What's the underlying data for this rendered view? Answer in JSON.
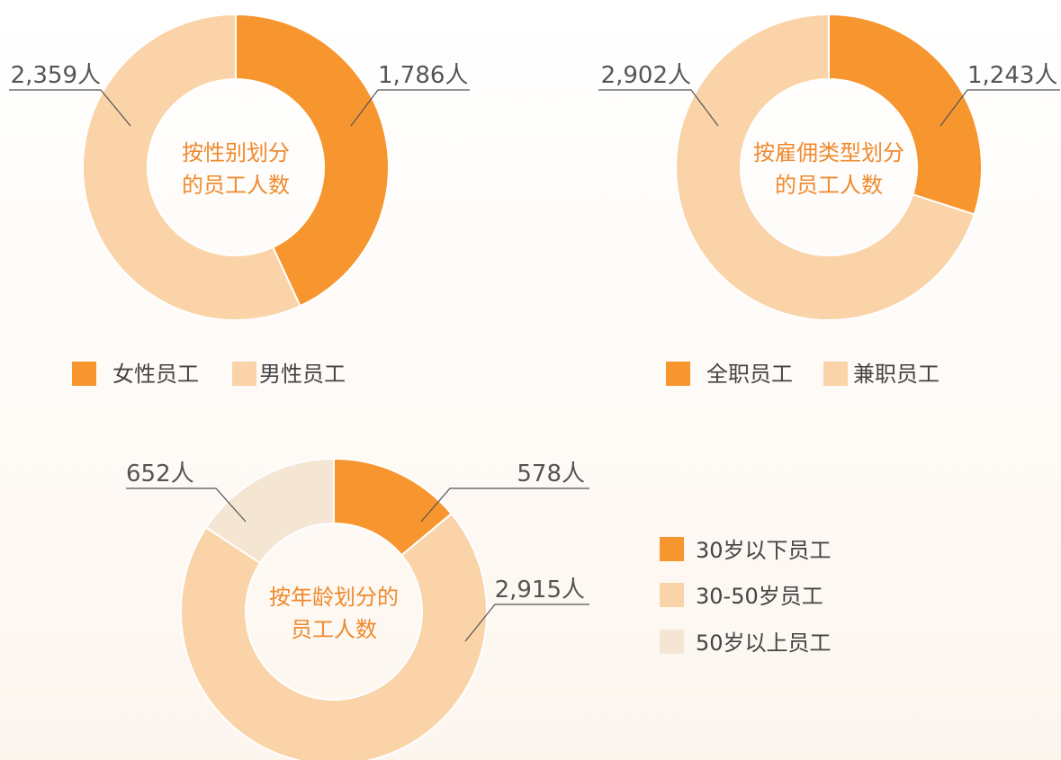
{
  "chart_data": [
    {
      "type": "pie",
      "title": [
        "按性别划分",
        "的员工人数"
      ],
      "categories": [
        "女性员工",
        "男性员工"
      ],
      "values": [
        1786,
        2359
      ],
      "value_labels": [
        "1,786人",
        "2,359人"
      ],
      "colors": [
        "#f7962f",
        "#fad3a8"
      ]
    },
    {
      "type": "pie",
      "title": [
        "按雇佣类型划分",
        "的员工人数"
      ],
      "categories": [
        "全职员工",
        "兼职员工"
      ],
      "values": [
        1243,
        2902
      ],
      "value_labels": [
        "1,243人",
        "2,902人"
      ],
      "colors": [
        "#f7962f",
        "#fad3a8"
      ]
    },
    {
      "type": "pie",
      "title": [
        "按年龄划分的",
        "员工人数"
      ],
      "categories": [
        "30岁以下员工",
        "30-50岁员工",
        "50岁以上员工"
      ],
      "values": [
        578,
        2915,
        652
      ],
      "value_labels": [
        "578人",
        "2,915人",
        "652人"
      ],
      "colors": [
        "#f7962f",
        "#fad3a8",
        "#f5e5d3"
      ]
    }
  ]
}
